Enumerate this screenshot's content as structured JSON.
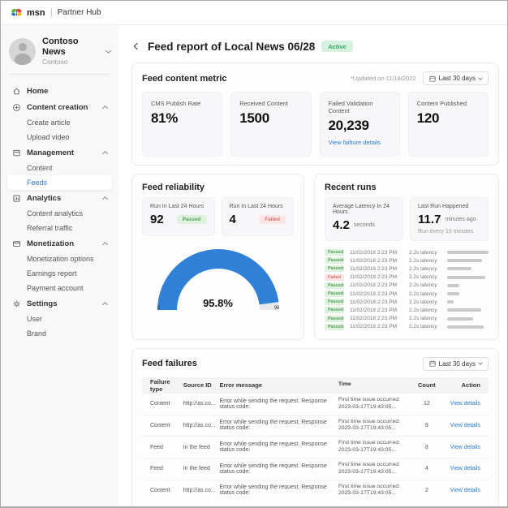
{
  "topbar": {
    "brand": "msn",
    "product": "Partner Hub"
  },
  "sidebar": {
    "org": {
      "name": "Contoso News",
      "subtitle": "Contoso"
    },
    "sections": [
      {
        "label": "Home"
      },
      {
        "label": "Content creation",
        "children": [
          "Create article",
          "Upload video"
        ]
      },
      {
        "label": "Management",
        "children": [
          "Content",
          "Feeds"
        ]
      },
      {
        "label": "Analytics",
        "children": [
          "Content analytics",
          "Referral traffic"
        ]
      },
      {
        "label": "Monetization",
        "children": [
          "Monetization options",
          "Earnings report",
          "Payment account"
        ]
      },
      {
        "label": "Settings",
        "children": [
          "User",
          "Brand"
        ]
      }
    ],
    "active_item": "Feeds"
  },
  "page": {
    "title": "Feed report of Local News 06/28",
    "status_badge": "Active"
  },
  "metrics": {
    "title": "Feed content metric",
    "updated": "*Updated on 11/18/2022",
    "range": "Last 30 days",
    "cards": [
      {
        "label": "CMS Publish Rate",
        "value": "81%"
      },
      {
        "label": "Received Content",
        "value": "1500"
      },
      {
        "label": "Failed Validation Content",
        "value": "20,239",
        "link": "View failture details"
      },
      {
        "label": "Content Published",
        "value": "120"
      }
    ]
  },
  "reliability": {
    "title": "Feed reliability",
    "stats": [
      {
        "label": "Run In Last 24 Hours",
        "value": "92",
        "badge": "Passed"
      },
      {
        "label": "Run In Last 24 Hours",
        "value": "4",
        "badge": "Failed"
      }
    ],
    "gauge": {
      "value": "95.8%",
      "pct": 95.8,
      "min": "0",
      "max": "96"
    }
  },
  "recent_runs": {
    "title": "Recent runs",
    "stats": [
      {
        "label": "Average Latency In 24 Hours",
        "value": "4.2",
        "unit": "seconds"
      },
      {
        "label": "Last Run Happened",
        "value": "11.7",
        "unit": "minutes ago",
        "note": "Run every 15 minutes"
      }
    ],
    "rows": [
      {
        "status": "Passed",
        "time": "11/02/2018 2:23 PM",
        "latency": "2.2s latency",
        "bar_pct": 100
      },
      {
        "status": "Passed",
        "time": "11/02/2018 2:23 PM",
        "latency": "2.2s latency",
        "bar_pct": 84
      },
      {
        "status": "Passed",
        "time": "11/02/2018 2:23 PM",
        "latency": "2.2s latency",
        "bar_pct": 58
      },
      {
        "status": "Failed",
        "time": "11/02/2018 2:23 PM",
        "latency": "2.2s latency",
        "bar_pct": 92
      },
      {
        "status": "Passed",
        "time": "11/02/2018 2:23 PM",
        "latency": "2.2s latency",
        "bar_pct": 30
      },
      {
        "status": "Passed",
        "time": "11/02/2018 2:23 PM",
        "latency": "2.2s latency",
        "bar_pct": 30
      },
      {
        "status": "Passed",
        "time": "11/02/2018 2:23 PM",
        "latency": "2.2s latency",
        "bar_pct": 15
      },
      {
        "status": "Passed",
        "time": "11/02/2018 2:23 PM",
        "latency": "2.2s latency",
        "bar_pct": 82
      },
      {
        "status": "Passed",
        "time": "11/02/2018 2:23 PM",
        "latency": "2.2s latency",
        "bar_pct": 62
      },
      {
        "status": "Passed",
        "time": "11/02/2018 2:23 PM",
        "latency": "2.2s latency",
        "bar_pct": 88
      }
    ]
  },
  "failures": {
    "title": "Feed failures",
    "range": "Last 30 days",
    "headers": [
      "Failure type",
      "Source ID",
      "Error message",
      "Time",
      "Count",
      "Action"
    ],
    "rows": [
      {
        "type": "Content",
        "source": "http://as.co...",
        "message": "Error while sending the request. Response status code:",
        "time_line1": "First time issue occurred:",
        "time_line2": "2023-03-17T19:43:05...",
        "count": "12",
        "action": "View details"
      },
      {
        "type": "Content",
        "source": "http://as.co...",
        "message": "Error while sending the request. Response status code:",
        "time_line1": "First time issue occurred:",
        "time_line2": "2023-03-17T19:43:05...",
        "count": "9",
        "action": "View details"
      },
      {
        "type": "Feed",
        "source": "In the feed",
        "message": "Error while sending the request. Response status code:",
        "time_line1": "First time issue occurred:",
        "time_line2": "2023-03-17T19:43:05...",
        "count": "8",
        "action": "View details"
      },
      {
        "type": "Feed",
        "source": "In the feed",
        "message": "Error while sending the request. Response status code:",
        "time_line1": "First time issue occurred:",
        "time_line2": "2023-03-17T19:43:05...",
        "count": "4",
        "action": "View details"
      },
      {
        "type": "Content",
        "source": "http://as.co...",
        "message": "Error while sending the request. Response status code:",
        "time_line1": "First time issue occurred:",
        "time_line2": "2023-03-17T19:43:05...",
        "count": "2",
        "action": "View details"
      }
    ]
  },
  "colors": {
    "accent": "#2b7cd3",
    "gauge_blue": "#2f80d6",
    "passed_bg": "#def2de",
    "passed_text": "#58a15b",
    "failed_bg": "#fce5e5",
    "failed_text": "#dd7070",
    "active_bg": "#d7f2de",
    "active_text": "#37a865"
  }
}
